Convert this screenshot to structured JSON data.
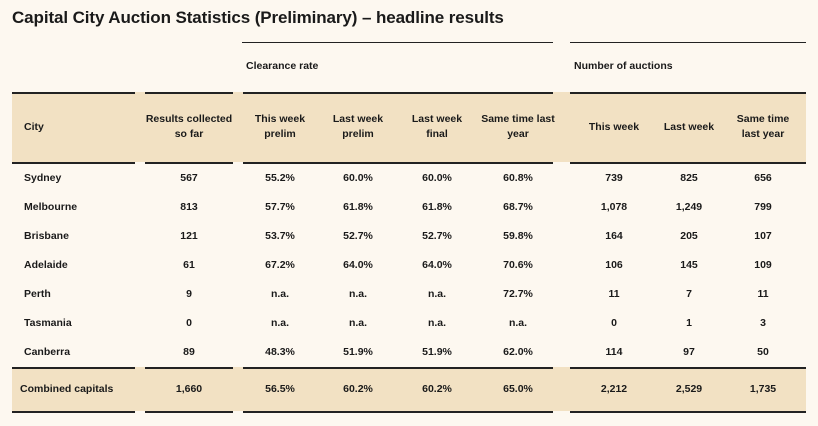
{
  "title": "Capital City Auction Statistics (Preliminary) – headline results",
  "groups": {
    "clearance": "Clearance rate",
    "auctions": "Number of auctions"
  },
  "columns": [
    "City",
    "Results collected so far",
    "This week prelim",
    "Last week prelim",
    "Last week final",
    "Same time last year",
    "This week",
    "Last week",
    "Same time last year"
  ],
  "rows": [
    [
      "Sydney",
      "567",
      "55.2%",
      "60.0%",
      "60.0%",
      "60.8%",
      "739",
      "825",
      "656"
    ],
    [
      "Melbourne",
      "813",
      "57.7%",
      "61.8%",
      "61.8%",
      "68.7%",
      "1,078",
      "1,249",
      "799"
    ],
    [
      "Brisbane",
      "121",
      "53.7%",
      "52.7%",
      "52.7%",
      "59.8%",
      "164",
      "205",
      "107"
    ],
    [
      "Adelaide",
      "61",
      "67.2%",
      "64.0%",
      "64.0%",
      "70.6%",
      "106",
      "145",
      "109"
    ],
    [
      "Perth",
      "9",
      "n.a.",
      "n.a.",
      "n.a.",
      "72.7%",
      "11",
      "7",
      "11"
    ],
    [
      "Tasmania",
      "0",
      "n.a.",
      "n.a.",
      "n.a.",
      "n.a.",
      "0",
      "1",
      "3"
    ],
    [
      "Canberra",
      "89",
      "48.3%",
      "51.9%",
      "51.9%",
      "62.0%",
      "114",
      "97",
      "50"
    ]
  ],
  "total": [
    "Combined capitals",
    "1,660",
    "56.5%",
    "60.2%",
    "60.2%",
    "65.0%",
    "2,212",
    "2,529",
    "1,735"
  ]
}
